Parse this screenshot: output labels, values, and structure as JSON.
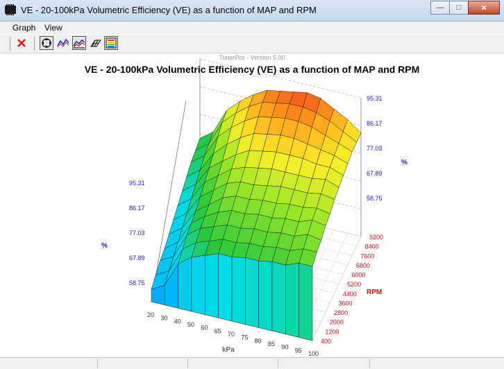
{
  "window": {
    "title": "VE - 20-100kPa Volumetric Efficiency (VE) as a function of MAP and RPM"
  },
  "menu": {
    "items": [
      "Graph",
      "View"
    ]
  },
  "toolbar": {
    "buttons": [
      "close-x-icon",
      "pan-move-icon",
      "line-graph-icon",
      "surface-graph-icon",
      "wireframe-icon",
      "color-legend-icon"
    ],
    "close_color": "#d11a1a"
  },
  "chart_data": {
    "type": "surface",
    "watermark": "TunerPro - Version 5.00",
    "title": "VE - 20-100kPa Volumetric Efficiency (VE) as a function of MAP and RPM",
    "xlabel": "kPa",
    "ylabel": "RPM",
    "zlabel": "%",
    "kpa_ticks": [
      "20",
      "30",
      "40",
      "50",
      "60",
      "65",
      "70",
      "75",
      "80",
      "85",
      "90",
      "95",
      "100"
    ],
    "rpm_ticks": [
      "400",
      "1200",
      "2000",
      "2800",
      "3600",
      "4400",
      "5200",
      "6000",
      "6800",
      "7600",
      "8400",
      "9200"
    ],
    "z_ticks": [
      "95.31",
      "86.17",
      "77.03",
      "67.89",
      "58.75"
    ],
    "zlim": [
      58.75,
      95.31
    ],
    "colors": {
      "z_axis": "#1a1ad0",
      "rpm_axis": "#d01010",
      "kpa_axis": "#333333"
    },
    "ve": [
      [
        45,
        48,
        58,
        62,
        64,
        66,
        66,
        67,
        67,
        68,
        68,
        70,
        70
      ],
      [
        47,
        50,
        60,
        64,
        66,
        68,
        68,
        69,
        69,
        70,
        70,
        72,
        72
      ],
      [
        49,
        52,
        62,
        66,
        68,
        70,
        70,
        71,
        71,
        72,
        72,
        74,
        73
      ],
      [
        50,
        54,
        63,
        67,
        70,
        72,
        72,
        73,
        73,
        74,
        74,
        76,
        75
      ],
      [
        52,
        56,
        64,
        68,
        72,
        74,
        74,
        75,
        75,
        76,
        76,
        77,
        76
      ],
      [
        54,
        58,
        66,
        70,
        74,
        76,
        76,
        77,
        78,
        78,
        78,
        79,
        78
      ],
      [
        56,
        60,
        68,
        72,
        76,
        78,
        79,
        80,
        80,
        80,
        80,
        81,
        79
      ],
      [
        58,
        62,
        70,
        74,
        78,
        81,
        82,
        83,
        83,
        83,
        82,
        82,
        80
      ],
      [
        60,
        64,
        72,
        77,
        81,
        84,
        85,
        86,
        86,
        85,
        84,
        83,
        81
      ],
      [
        62,
        66,
        75,
        80,
        84,
        87,
        88,
        89,
        89,
        88,
        86,
        84,
        82
      ],
      [
        63,
        67,
        77,
        82,
        86,
        89,
        90,
        91,
        91,
        90,
        88,
        85,
        82
      ],
      [
        64,
        68,
        78,
        83,
        87,
        90,
        91,
        92,
        93,
        92,
        89,
        86,
        82
      ]
    ]
  }
}
